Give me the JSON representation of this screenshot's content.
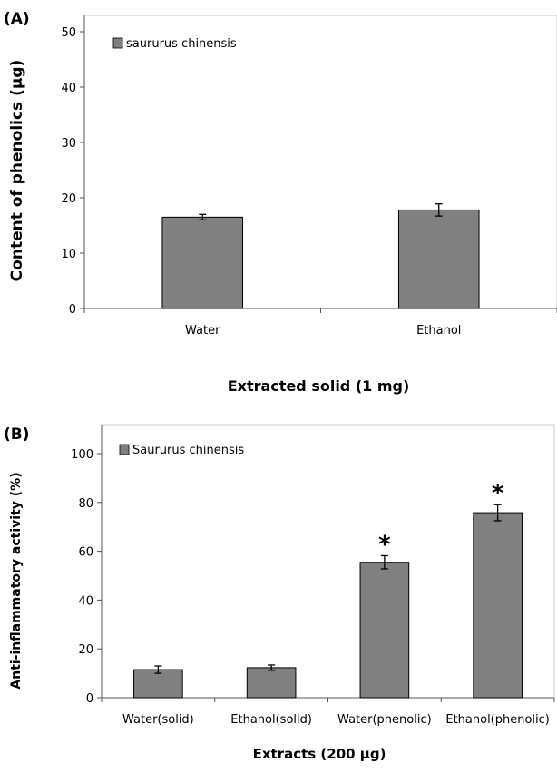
{
  "chart_data": [
    {
      "panel_label": "(A)",
      "type": "bar",
      "categories": [
        "Water",
        "Ethanol"
      ],
      "series": [
        {
          "name": "saururus chinensis",
          "values": [
            16.5,
            17.8
          ],
          "errors": [
            0.5,
            1.1
          ]
        }
      ],
      "ylabel": "Content of phenolics (μg)",
      "xlabel": "Extracted solid (1 mg)",
      "ylim": [
        0,
        50
      ],
      "yticks": [
        0,
        10,
        20,
        30,
        40,
        50
      ],
      "ytick_labels": [
        "0",
        "10",
        "20",
        "30",
        "40",
        "50"
      ],
      "legend_position": "top-left",
      "grid": false,
      "bar_color": "#808080"
    },
    {
      "panel_label": "(B)",
      "type": "bar",
      "categories": [
        "Water(solid)",
        "Ethanol(solid)",
        "Water(phenolic)",
        "Ethanol(phenolic)"
      ],
      "series": [
        {
          "name": "Saururus chinensis",
          "values": [
            11.5,
            12.3,
            55.5,
            75.8
          ],
          "errors": [
            1.5,
            1.1,
            2.7,
            3.3
          ]
        }
      ],
      "annotations": [
        "",
        "",
        "*",
        "*"
      ],
      "ylabel": "Anti-inflammatory activity (%)",
      "xlabel": "Extracts (200 μg)",
      "ylim": [
        0,
        100
      ],
      "yticks": [
        0,
        20,
        40,
        60,
        80,
        100
      ],
      "ytick_labels": [
        "0",
        "20",
        "40",
        "60",
        "80",
        "100"
      ],
      "legend_position": "top-left",
      "grid": false,
      "bar_color": "#808080"
    }
  ]
}
